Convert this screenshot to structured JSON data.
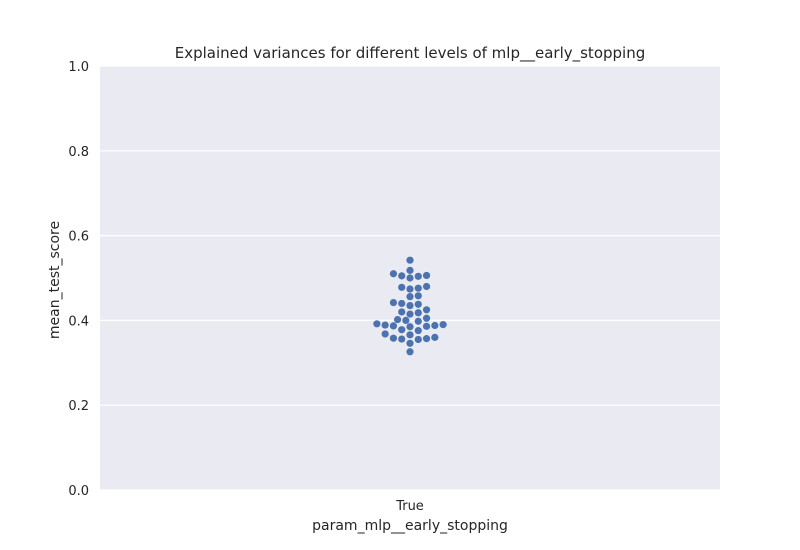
{
  "chart_data": {
    "type": "scatter",
    "title": "Explained variances for different levels of mlp__early_stopping",
    "xlabel": "param_mlp__early_stopping",
    "ylabel": "mean_test_score",
    "categories": [
      "True"
    ],
    "ylim": [
      0.0,
      1.0
    ],
    "yticks": [
      0.0,
      0.2,
      0.4,
      0.6,
      0.8,
      1.0
    ],
    "ytick_labels": [
      "0.0",
      "0.2",
      "0.4",
      "0.6",
      "0.8",
      "1.0"
    ],
    "grid": true,
    "style": {
      "background": "#EAEAF2",
      "grid_color": "#FFFFFF",
      "point_color": "#4C72B0"
    },
    "series": [
      {
        "category": "True",
        "values": [
          0.542,
          0.518,
          0.51,
          0.506,
          0.505,
          0.504,
          0.5,
          0.48,
          0.478,
          0.476,
          0.474,
          0.458,
          0.456,
          0.442,
          0.44,
          0.438,
          0.435,
          0.425,
          0.42,
          0.418,
          0.415,
          0.405,
          0.402,
          0.4,
          0.398,
          0.392,
          0.39,
          0.389,
          0.388,
          0.387,
          0.386,
          0.385,
          0.378,
          0.376,
          0.368,
          0.366,
          0.36,
          0.358,
          0.357,
          0.356,
          0.355,
          0.346,
          0.326
        ]
      }
    ]
  }
}
